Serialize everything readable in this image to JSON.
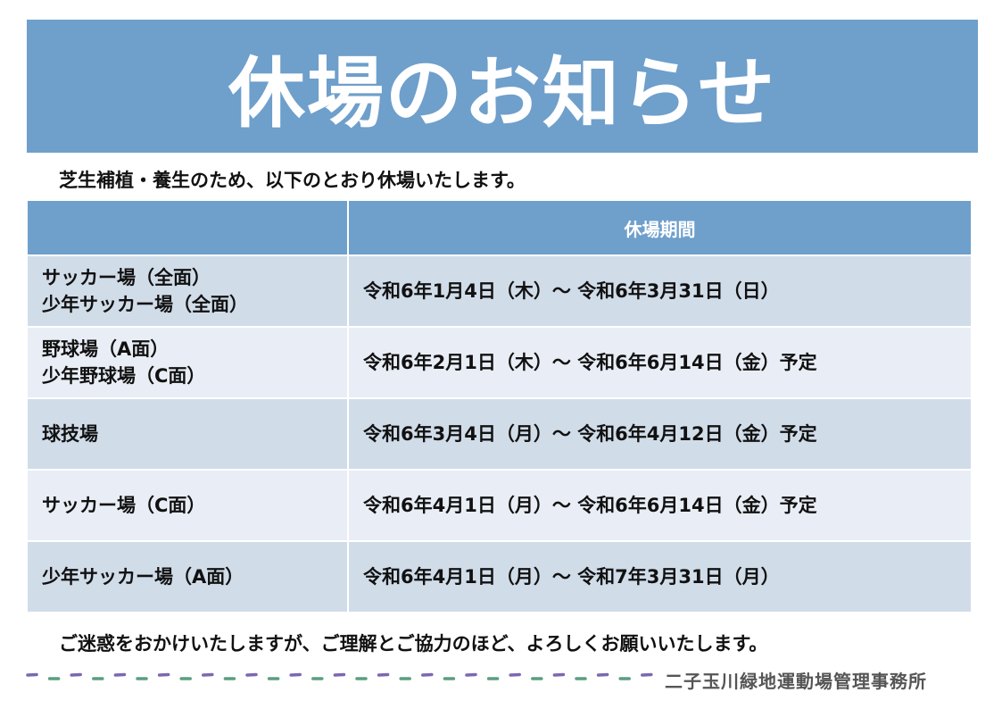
{
  "title": "休場のお知らせ",
  "intro": "芝生補植・養生のため、以下のとおり休場いたします。",
  "table": {
    "headers": [
      "",
      "休場期間"
    ],
    "rows": [
      {
        "facility": [
          "サッカー場（全面）",
          "少年サッカー場（全面）"
        ],
        "period": "令和6年1月4日（木）～ 令和6年3月31日（日）"
      },
      {
        "facility": [
          "野球場（A面）",
          "少年野球場（C面）"
        ],
        "period": "令和6年2月1日（木）～ 令和6年6月14日（金）予定"
      },
      {
        "facility": [
          "球技場"
        ],
        "period": "令和6年3月4日（月）～ 令和6年4月12日（金）予定"
      },
      {
        "facility": [
          "サッカー場（C面）"
        ],
        "period": "令和6年4月1日（月）～ 令和6年6月14日（金）予定"
      },
      {
        "facility": [
          "少年サッカー場（A面）"
        ],
        "period": "令和6年4月1日（月）～ 令和7年3月31日（月）"
      }
    ]
  },
  "outro": "ご迷惑をおかけいたしますが、ご理解とご協力のほど、よろしくお願いいたします。",
  "office": "二子玉川緑地運動場管理事務所",
  "colors": {
    "banner": "#6f9fcb",
    "row_odd": "#d1dce9",
    "row_even": "#e9eef6",
    "dash_purple": "#7b68b0",
    "dash_green": "#5a9e80"
  }
}
